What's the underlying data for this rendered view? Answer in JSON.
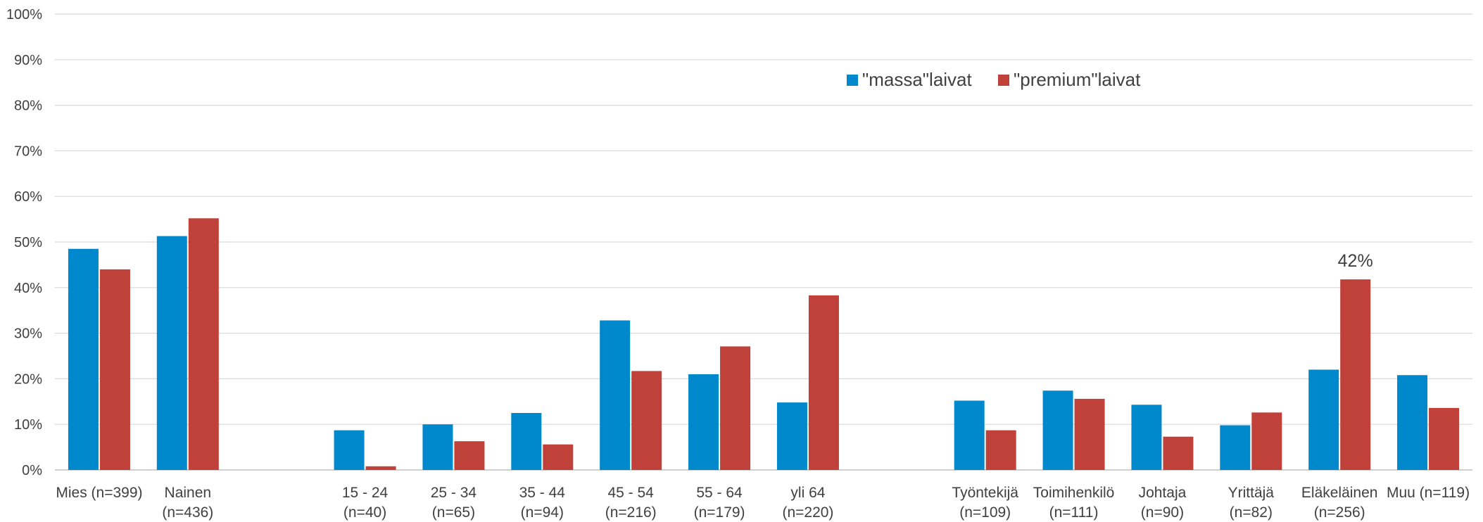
{
  "chart_data": {
    "type": "bar",
    "title": "",
    "xlabel": "",
    "ylabel": "",
    "ylim": [
      0,
      100
    ],
    "yticks": [
      "0%",
      "10%",
      "20%",
      "30%",
      "40%",
      "50%",
      "60%",
      "70%",
      "80%",
      "90%",
      "100%"
    ],
    "grid": true,
    "legend_position": "top-right",
    "categories": [
      [
        "Mies (n=399)",
        ""
      ],
      [
        "Nainen",
        "(n=436)"
      ],
      [
        "",
        ""
      ],
      [
        "15 - 24",
        "(n=40)"
      ],
      [
        "25 - 34",
        "(n=65)"
      ],
      [
        "35 - 44",
        "(n=94)"
      ],
      [
        "45 - 54",
        "(n=216)"
      ],
      [
        "55 - 64",
        "(n=179)"
      ],
      [
        "yli 64",
        "(n=220)"
      ],
      [
        "",
        ""
      ],
      [
        "Työntekijä",
        "(n=109)"
      ],
      [
        "Toimihenkilö",
        "(n=111)"
      ],
      [
        "Johtaja",
        "(n=90)"
      ],
      [
        "Yrittäjä",
        "(n=82)"
      ],
      [
        "Eläkeläinen",
        "(n=256)"
      ],
      [
        "Muu (n=119)",
        ""
      ]
    ],
    "series": [
      {
        "name": "\"massa\"laivat",
        "color": "#0088cc",
        "values": [
          48.5,
          51.3,
          null,
          8.7,
          10.0,
          12.5,
          32.8,
          21.0,
          14.8,
          null,
          15.2,
          17.4,
          14.3,
          9.8,
          22.0,
          20.8
        ]
      },
      {
        "name": "\"premium\"laivat",
        "color": "#c0413a",
        "values": [
          44.0,
          55.2,
          null,
          0.8,
          6.3,
          5.6,
          21.7,
          27.1,
          38.3,
          null,
          8.7,
          15.6,
          7.3,
          12.6,
          41.8,
          13.6
        ]
      }
    ],
    "annotations": [
      {
        "category_index": 14,
        "series": 1,
        "text": "42%"
      }
    ]
  }
}
